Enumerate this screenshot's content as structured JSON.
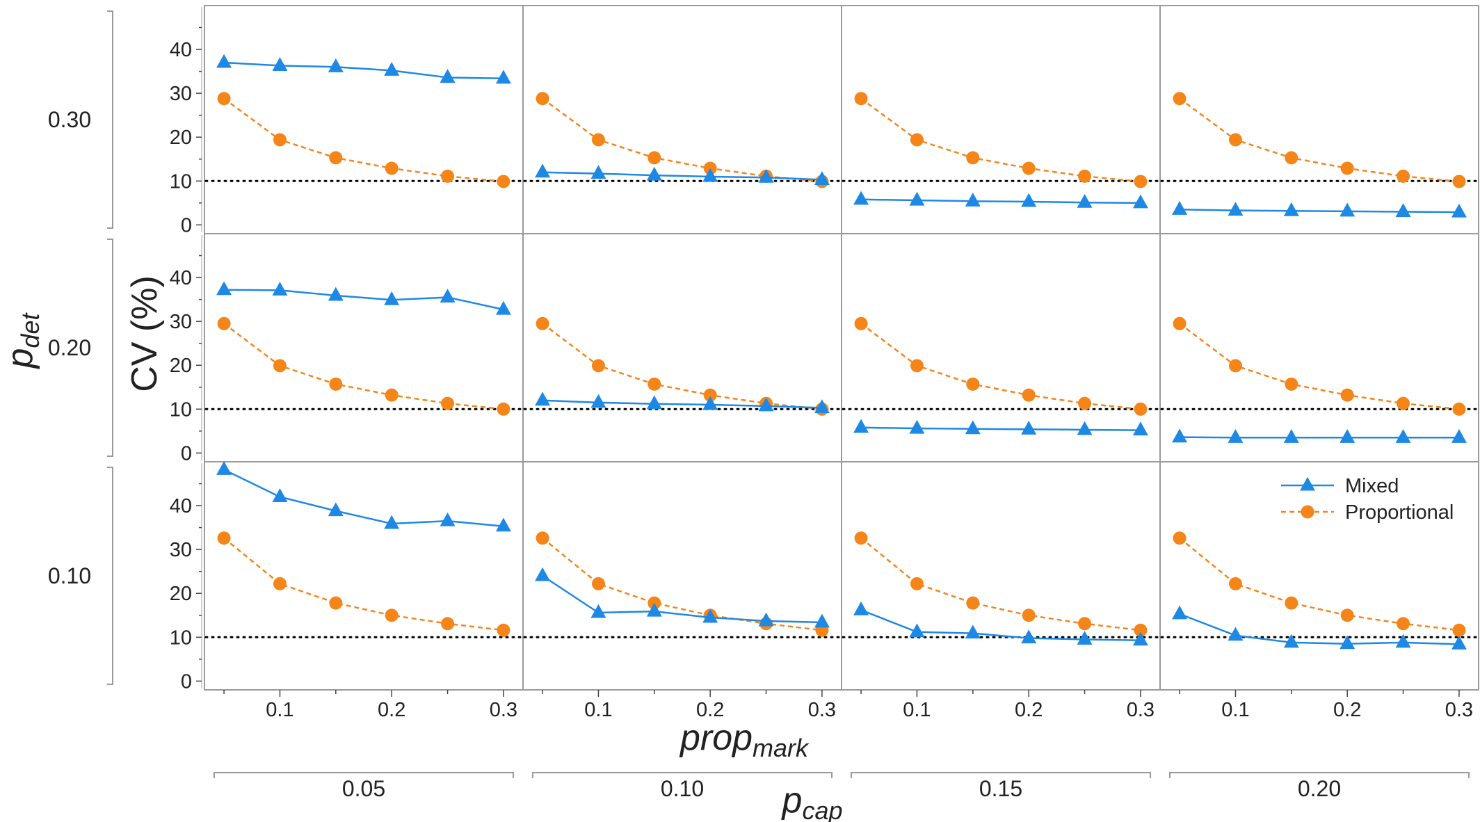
{
  "chart_data": {
    "type": "line",
    "facet_rows": {
      "label": "p",
      "label_sub": "det",
      "values": [
        "0.30",
        "0.20",
        "0.10"
      ]
    },
    "facet_cols": {
      "label": "p",
      "label_sub": "cap",
      "values": [
        "0.05",
        "0.10",
        "0.15",
        "0.20"
      ]
    },
    "xlabel": "prop",
    "xlabel_sub": "mark",
    "ylabel": "CV (%)",
    "x": [
      0.05,
      0.1,
      0.15,
      0.2,
      0.25,
      0.3
    ],
    "xticks": [
      0.1,
      0.2,
      0.3
    ],
    "xtick_labels": [
      "0.1",
      "0.2",
      "0.3"
    ],
    "xlim": [
      0.04,
      0.31
    ],
    "yticks": [
      0,
      10,
      20,
      30,
      40
    ],
    "ylim": [
      -2,
      50
    ],
    "reference_line": {
      "y": 10,
      "style": "dotted",
      "color": "#000000"
    },
    "legend": {
      "placement": "top-right of bottom-right panel",
      "entries": [
        {
          "name": "Mixed",
          "color": "#1e88e5",
          "marker": "triangle",
          "line": "solid"
        },
        {
          "name": "Proportional",
          "color": "#f58518",
          "marker": "circle",
          "line": "dashed"
        }
      ]
    },
    "series_colors": {
      "Mixed": "#1e88e5",
      "Proportional": "#f58518"
    },
    "panels": [
      {
        "p_det": "0.30",
        "p_cap": "0.05",
        "Mixed": [
          37.0,
          36.3,
          36.0,
          35.2,
          33.6,
          33.4
        ],
        "Proportional": [
          28.8,
          19.4,
          15.3,
          12.9,
          11.1,
          9.9
        ]
      },
      {
        "p_det": "0.30",
        "p_cap": "0.10",
        "Mixed": [
          12.0,
          11.7,
          11.3,
          11.0,
          10.8,
          10.3
        ],
        "Proportional": [
          28.8,
          19.4,
          15.3,
          12.9,
          11.1,
          9.9
        ]
      },
      {
        "p_det": "0.30",
        "p_cap": "0.15",
        "Mixed": [
          5.8,
          5.6,
          5.4,
          5.3,
          5.1,
          5.0
        ],
        "Proportional": [
          28.8,
          19.4,
          15.3,
          12.9,
          11.1,
          9.9
        ]
      },
      {
        "p_det": "0.30",
        "p_cap": "0.20",
        "Mixed": [
          3.5,
          3.3,
          3.2,
          3.1,
          3.0,
          2.9
        ],
        "Proportional": [
          28.8,
          19.4,
          15.3,
          12.9,
          11.1,
          9.9
        ]
      },
      {
        "p_det": "0.20",
        "p_cap": "0.05",
        "Mixed": [
          37.2,
          37.1,
          35.9,
          34.9,
          35.5,
          32.7
        ],
        "Proportional": [
          29.5,
          19.9,
          15.7,
          13.2,
          11.3,
          10.0
        ]
      },
      {
        "p_det": "0.20",
        "p_cap": "0.10",
        "Mixed": [
          12.0,
          11.5,
          11.2,
          11.0,
          10.7,
          10.3
        ],
        "Proportional": [
          29.5,
          19.9,
          15.7,
          13.2,
          11.3,
          10.0
        ]
      },
      {
        "p_det": "0.20",
        "p_cap": "0.15",
        "Mixed": [
          5.8,
          5.6,
          5.5,
          5.4,
          5.3,
          5.2
        ],
        "Proportional": [
          29.5,
          19.9,
          15.7,
          13.2,
          11.3,
          10.0
        ]
      },
      {
        "p_det": "0.20",
        "p_cap": "0.20",
        "Mixed": [
          3.6,
          3.5,
          3.5,
          3.5,
          3.5,
          3.5
        ],
        "Proportional": [
          29.5,
          19.9,
          15.7,
          13.2,
          11.3,
          10.0
        ]
      },
      {
        "p_det": "0.10",
        "p_cap": "0.05",
        "Mixed": [
          48.2,
          42.0,
          38.8,
          35.9,
          36.5,
          35.3
        ],
        "Proportional": [
          32.6,
          22.2,
          17.8,
          15.0,
          13.1,
          11.6
        ]
      },
      {
        "p_det": "0.10",
        "p_cap": "0.10",
        "Mixed": [
          24.0,
          15.6,
          15.9,
          14.5,
          13.7,
          13.4
        ],
        "Proportional": [
          32.6,
          22.2,
          17.8,
          15.0,
          13.1,
          11.6
        ]
      },
      {
        "p_det": "0.10",
        "p_cap": "0.15",
        "Mixed": [
          16.2,
          11.2,
          10.9,
          9.8,
          9.5,
          9.3
        ],
        "Proportional": [
          32.6,
          22.2,
          17.8,
          15.0,
          13.1,
          11.6
        ]
      },
      {
        "p_det": "0.10",
        "p_cap": "0.20",
        "Mixed": [
          15.3,
          10.4,
          8.8,
          8.5,
          8.8,
          8.4
        ],
        "Proportional": [
          32.6,
          22.2,
          17.8,
          15.0,
          13.1,
          11.6
        ]
      }
    ]
  }
}
